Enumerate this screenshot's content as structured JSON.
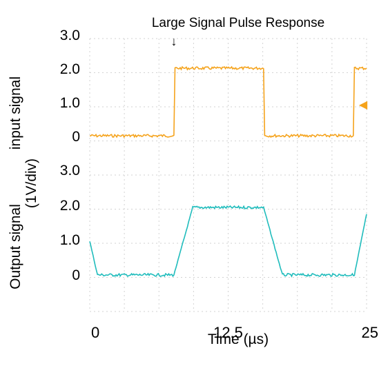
{
  "chart_data": {
    "type": "line",
    "title": "Large Signal Pulse Response",
    "xlabel": "Time (µs)",
    "ylabel_top": "input signal",
    "ylabel_bottom": "Output signal",
    "ylabel_unit": "(1V/div)",
    "xlim": [
      0,
      25
    ],
    "x_ticks": [
      "0",
      "12.5",
      "25"
    ],
    "y_ticks_input": [
      "3.0",
      "2.0",
      "1.0",
      "0"
    ],
    "y_ticks_output": [
      "3.0",
      "2.0",
      "1.0",
      "0"
    ],
    "grid": true,
    "series": [
      {
        "name": "input signal",
        "color": "#f5a31c",
        "x": [
          0,
          7.6,
          7.7,
          15.7,
          15.8,
          23.8,
          23.9,
          25
        ],
        "y": [
          0,
          0,
          2.0,
          2.0,
          0,
          0,
          2.0,
          2.0
        ]
      },
      {
        "name": "Output signal",
        "color": "#1fbcbc",
        "x": [
          0,
          0.7,
          7.6,
          9.3,
          15.7,
          17.4,
          23.9,
          25
        ],
        "y": [
          1.0,
          0,
          0,
          2.0,
          2.0,
          0,
          0,
          1.8
        ]
      }
    ],
    "markers": {
      "trigger_arrow": "↓",
      "level_marker": "◀"
    }
  }
}
